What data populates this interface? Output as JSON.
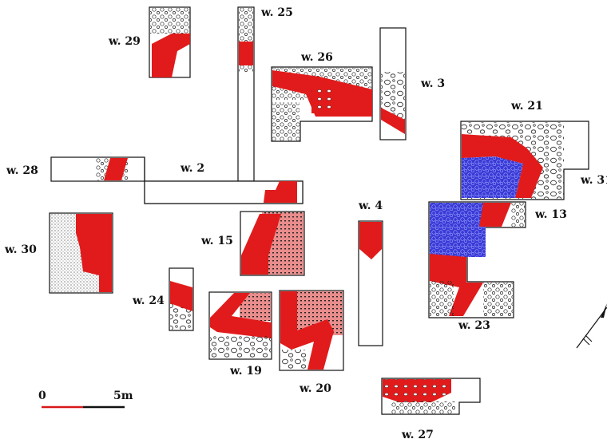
{
  "colors": {
    "wall_red": "#e11b1b",
    "wall_pink": "#e98c8c",
    "wall_blue": "#2f2fd0",
    "outline": "#111111",
    "scale_red": "#d81818",
    "scale_black": "#111111"
  },
  "trenches": [
    {
      "key": "w29",
      "label": "w. 29"
    },
    {
      "key": "w25",
      "label": "w. 25"
    },
    {
      "key": "w26",
      "label": "w. 26"
    },
    {
      "key": "w3",
      "label": "w. 3"
    },
    {
      "key": "w21",
      "label": "w. 21"
    },
    {
      "key": "w28",
      "label": "w. 28"
    },
    {
      "key": "w2",
      "label": "w. 2"
    },
    {
      "key": "w31",
      "label": "w. 31"
    },
    {
      "key": "w4",
      "label": "w. 4"
    },
    {
      "key": "w13",
      "label": "w. 13"
    },
    {
      "key": "w30",
      "label": "w. 30"
    },
    {
      "key": "w15",
      "label": "w. 15"
    },
    {
      "key": "w24",
      "label": "w. 24"
    },
    {
      "key": "w23",
      "label": "w. 23"
    },
    {
      "key": "w19",
      "label": "w. 19"
    },
    {
      "key": "w20",
      "label": "w. 20"
    },
    {
      "key": "w27",
      "label": "w. 27"
    }
  ],
  "scale_bar": {
    "start_label": "0",
    "end_label": "5m"
  },
  "north_arrow": {
    "icon": "north-arrow-icon"
  }
}
